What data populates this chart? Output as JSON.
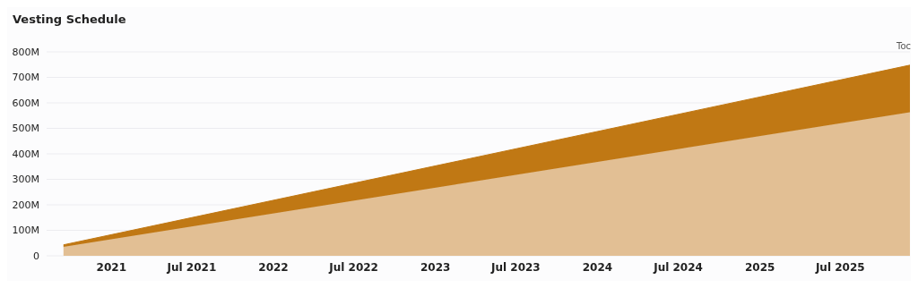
{
  "chart_data": {
    "type": "area",
    "title": "Vesting Schedule",
    "stacked": true,
    "x": [
      "2020-09-15",
      "2025-12-05"
    ],
    "series": [
      {
        "color": "#e2bf94",
        "values": [
          35000000,
          563000000
        ]
      },
      {
        "color": "#c07814",
        "values": [
          8000000,
          185000000
        ]
      }
    ],
    "xlim": [
      "2020-08-08",
      "2025-12-05"
    ],
    "xticks": [
      {
        "value": "2021-01-01",
        "label": "2021"
      },
      {
        "value": "2021-07-01",
        "label": "Jul 2021"
      },
      {
        "value": "2022-01-01",
        "label": "2022"
      },
      {
        "value": "2022-07-01",
        "label": "Jul 2022"
      },
      {
        "value": "2023-01-01",
        "label": "2023"
      },
      {
        "value": "2023-07-01",
        "label": "Jul 2023"
      },
      {
        "value": "2024-01-01",
        "label": "2024"
      },
      {
        "value": "2024-07-01",
        "label": "Jul 2024"
      },
      {
        "value": "2025-01-01",
        "label": "2025"
      },
      {
        "value": "2025-07-01",
        "label": "Jul 2025"
      }
    ],
    "ylim": [
      0,
      800000000
    ],
    "yticks": [
      {
        "value": 0,
        "label": "0"
      },
      {
        "value": 100000000,
        "label": "100M"
      },
      {
        "value": 200000000,
        "label": "200M"
      },
      {
        "value": 300000000,
        "label": "300M"
      },
      {
        "value": 400000000,
        "label": "400M"
      },
      {
        "value": 500000000,
        "label": "500M"
      },
      {
        "value": 600000000,
        "label": "600M"
      },
      {
        "value": 700000000,
        "label": "700M"
      },
      {
        "value": 800000000,
        "label": "800M"
      }
    ],
    "grid": "y",
    "legend": false,
    "annotations": [
      "Toc"
    ]
  }
}
